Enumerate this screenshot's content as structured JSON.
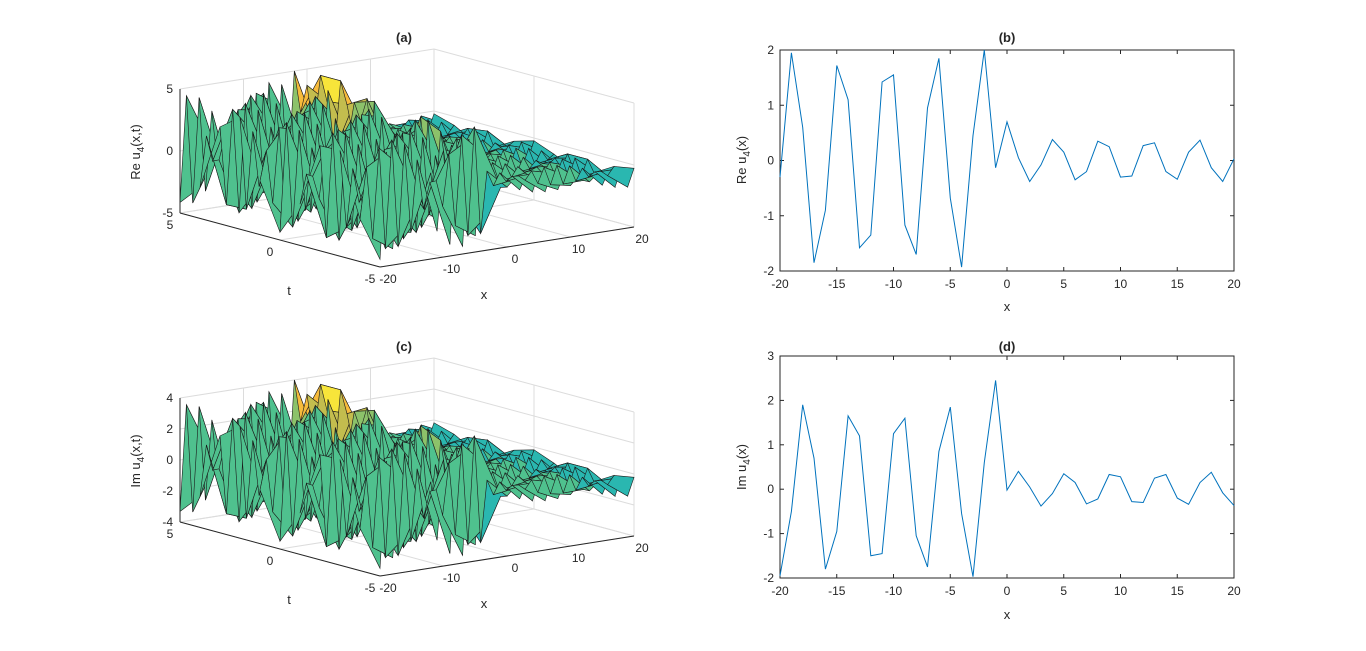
{
  "chart_data": [
    {
      "type": "surface",
      "title": "(a)",
      "xlabel": "x",
      "ylabel": "t",
      "zlabel": "Re u",
      "zlabel_sub": "4",
      "zlabel_tail": "(x,t)",
      "xlim": [
        -20,
        20
      ],
      "ylim": [
        -5,
        5
      ],
      "zlim": [
        -5,
        5
      ],
      "xticks": [
        "-20",
        "-10",
        "0",
        "10",
        "20"
      ],
      "yticks": [
        "-5",
        "0",
        "5"
      ],
      "zticks": [
        "-5",
        "0",
        "5"
      ],
      "colormap": [
        "#3e26a8",
        "#2f6ee2",
        "#1b9ad4",
        "#2ab7b0",
        "#4fc18e",
        "#8cc26a",
        "#c3bd4e",
        "#f7bb3c",
        "#f7e53a"
      ],
      "left_amp": 2.0,
      "right_amp": 0.35,
      "grid": true
    },
    {
      "type": "line",
      "title": "(b)",
      "xlabel": "x",
      "ylabel": "Re u",
      "ylabel_sub": "4",
      "ylabel_tail": "(x)",
      "xlim": [
        -20,
        20
      ],
      "ylim": [
        -2,
        2
      ],
      "xticks": [
        "-20",
        "-15",
        "-10",
        "-5",
        "0",
        "5",
        "10",
        "15",
        "20"
      ],
      "yticks": [
        "-2",
        "-1",
        "0",
        "1",
        "2"
      ],
      "color": "#0072bd",
      "x": [
        -20,
        -19,
        -18,
        -17,
        -16,
        -15,
        -14,
        -13,
        -12,
        -11,
        -10,
        -9,
        -8,
        -7,
        -6,
        -5,
        -4,
        -3,
        -2,
        -1,
        0,
        1,
        2,
        3,
        4,
        5,
        6,
        7,
        8,
        9,
        10,
        11,
        12,
        13,
        14,
        15,
        16,
        17,
        18,
        19,
        20
      ],
      "y": [
        -0.3,
        1.95,
        0.6,
        -1.85,
        -0.9,
        1.72,
        1.1,
        -1.58,
        -1.35,
        1.42,
        1.55,
        -1.17,
        -1.7,
        0.95,
        1.85,
        -0.68,
        -1.93,
        0.45,
        2.0,
        -0.13,
        0.7,
        0.05,
        -0.38,
        -0.08,
        0.38,
        0.15,
        -0.35,
        -0.2,
        0.35,
        0.25,
        -0.3,
        -0.28,
        0.27,
        0.32,
        -0.2,
        -0.34,
        0.15,
        0.37,
        -0.13,
        -0.38,
        0.03
      ]
    },
    {
      "type": "surface",
      "title": "(c)",
      "xlabel": "x",
      "ylabel": "t",
      "zlabel": "Im u",
      "zlabel_sub": "4",
      "zlabel_tail": "(x,t)",
      "xlim": [
        -20,
        20
      ],
      "ylim": [
        -5,
        5
      ],
      "zlim": [
        -4,
        4
      ],
      "xticks": [
        "-20",
        "-10",
        "0",
        "10",
        "20"
      ],
      "yticks": [
        "-5",
        "0",
        "5"
      ],
      "zticks": [
        "-4",
        "-2",
        "0",
        "2",
        "4"
      ],
      "colormap": [
        "#3e26a8",
        "#2f6ee2",
        "#1b9ad4",
        "#2ab7b0",
        "#4fc18e",
        "#8cc26a",
        "#c3bd4e",
        "#f7bb3c",
        "#f7e53a"
      ],
      "left_amp": 2.0,
      "right_amp": 0.35,
      "grid": true
    },
    {
      "type": "line",
      "title": "(d)",
      "xlabel": "x",
      "ylabel": "Im u",
      "ylabel_sub": "4",
      "ylabel_tail": "(x)",
      "xlim": [
        -20,
        20
      ],
      "ylim": [
        -2,
        3
      ],
      "xticks": [
        "-20",
        "-15",
        "-10",
        "-5",
        "0",
        "5",
        "10",
        "15",
        "20"
      ],
      "yticks": [
        "-2",
        "-1",
        "0",
        "1",
        "2",
        "3"
      ],
      "color": "#0072bd",
      "x": [
        -20,
        -19,
        -18,
        -17,
        -16,
        -15,
        -14,
        -13,
        -12,
        -11,
        -10,
        -9,
        -8,
        -7,
        -6,
        -5,
        -4,
        -3,
        -2,
        -1,
        0,
        1,
        2,
        3,
        4,
        5,
        6,
        7,
        8,
        9,
        10,
        11,
        12,
        13,
        14,
        15,
        16,
        17,
        18,
        19,
        20
      ],
      "y": [
        -1.95,
        -0.5,
        1.9,
        0.7,
        -1.8,
        -0.95,
        1.65,
        1.2,
        -1.5,
        -1.45,
        1.25,
        1.6,
        -1.05,
        -1.75,
        0.85,
        1.85,
        -0.55,
        -1.97,
        0.6,
        2.45,
        -0.02,
        0.4,
        0.05,
        -0.38,
        -0.1,
        0.35,
        0.15,
        -0.33,
        -0.22,
        0.33,
        0.28,
        -0.28,
        -0.3,
        0.25,
        0.33,
        -0.2,
        -0.34,
        0.15,
        0.38,
        -0.08,
        -0.37
      ]
    }
  ]
}
